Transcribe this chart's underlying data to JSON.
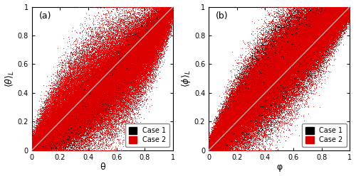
{
  "n_points": 80000,
  "panel_a_label_x": "θ",
  "panel_a_label_y": "$\\langle\\theta\\rangle_L$",
  "panel_b_label_x": "φ",
  "panel_b_label_y": "$\\langle\\phi\\rangle_L$",
  "panel_a_tag": "(a)",
  "panel_b_tag": "(b)",
  "color_case1": "#000000",
  "color_case2": "#dd0000",
  "diag_color": "#b0b0b0",
  "legend_labels": [
    "Case 1",
    "Case 2"
  ],
  "xlim": [
    0,
    1
  ],
  "ylim": [
    0,
    1
  ],
  "xticks": [
    0,
    0.2,
    0.4,
    0.6,
    0.8,
    1
  ],
  "yticks": [
    0,
    0.2,
    0.4,
    0.6,
    0.8,
    1
  ],
  "marker_size": 0.5,
  "background": "#ffffff",
  "a_case1_bias": -0.07,
  "a_case1_spread": 0.055,
  "a_case2_bias": -0.07,
  "a_case2_spread": 0.13,
  "a_case2_scurve": 0.18,
  "b_case1_bias": 0.0,
  "b_case1_spread": 0.09,
  "b_case2_bias": 0.0,
  "b_case2_spread": 0.13
}
